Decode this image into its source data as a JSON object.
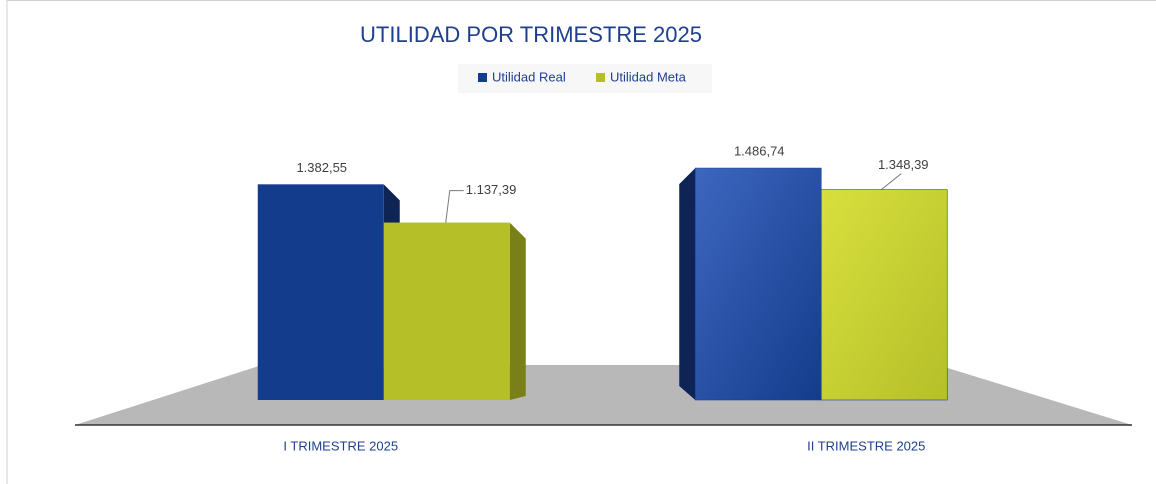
{
  "chart_data": {
    "type": "bar",
    "title": "UTILIDAD POR TRIMESTRE 2025",
    "categories": [
      "I TRIMESTRE 2025",
      "II TRIMESTRE 2025"
    ],
    "series": [
      {
        "name": "Utilidad Real",
        "color": "#143c8c",
        "values": [
          1382.55,
          1486.74
        ],
        "value_labels": [
          "1.382,55",
          "1.486,74"
        ]
      },
      {
        "name": "Utilidad Meta",
        "color": "#b5bf28",
        "values": [
          1137.39,
          1348.39
        ],
        "value_labels": [
          "1.137,39",
          "1.348,39"
        ]
      }
    ],
    "ylim": [
      0,
      2000
    ]
  }
}
